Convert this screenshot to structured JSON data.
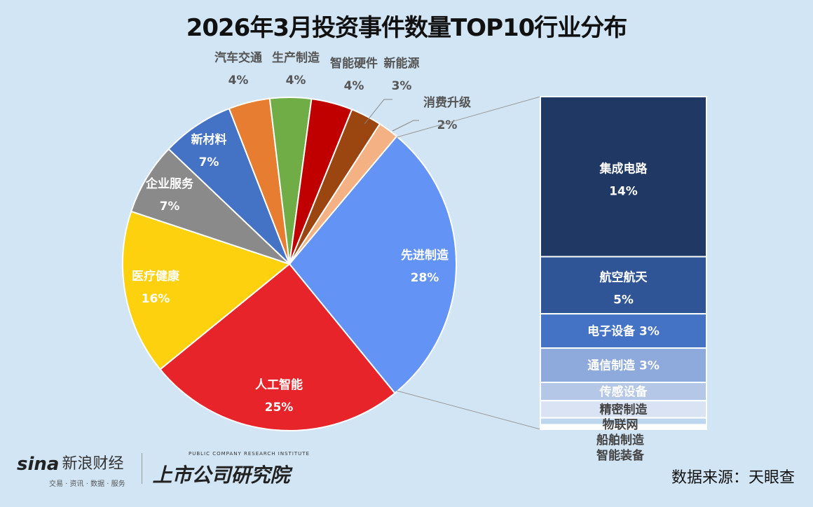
{
  "chart_data": {
    "type": "pie-of-bar",
    "title": "2026年3月投资事件数量TOP10行业分布",
    "pie": {
      "categories": [
        "先进制造",
        "人工智能",
        "医疗健康",
        "企业服务",
        "新材料",
        "汽车交通",
        "生产制造",
        "智能硬件",
        "新能源",
        "消费升级"
      ],
      "values": [
        28,
        25,
        16,
        7,
        7,
        4,
        4,
        4,
        3,
        2
      ],
      "labels": [
        "28%",
        "25%",
        "16%",
        "7%",
        "7%",
        "4%",
        "4%",
        "4%",
        "3%",
        "2%"
      ],
      "colors": [
        "#6393f5",
        "#e6242a",
        "#fdd10e",
        "#8a8a8a",
        "#4472c4",
        "#e77d31",
        "#70ad47",
        "#c00000",
        "#9b4511",
        "#f4b183"
      ]
    },
    "bar": {
      "categories": [
        "集成电路",
        "航空航天",
        "电子设备",
        "通信制造",
        "传感设备",
        "精密制造",
        "物联网",
        "船舶制造",
        "智能装备"
      ],
      "values": [
        14,
        5,
        3,
        3,
        1.6,
        1.5,
        0.6,
        0.2,
        0.2
      ],
      "labels": [
        "14%",
        "5%",
        "3%",
        "3%",
        "",
        "",
        "",
        "",
        ""
      ],
      "colors": [
        "#203864",
        "#2f5597",
        "#4472c4",
        "#8eaadc",
        "#b4c7e7",
        "#dae3f3",
        "#bdd7ee",
        "#ffffff",
        "#ffffff"
      ]
    }
  },
  "source": "数据来源：天眼查",
  "logos": {
    "sina": "sina",
    "sina_cn": "新浪财经",
    "sina_sub": "交易 · 资讯 · 数据 · 服务",
    "institute": "上市公司研究院",
    "institute_en": "PUBLIC COMPANY RESEARCH INSTITUTE"
  }
}
